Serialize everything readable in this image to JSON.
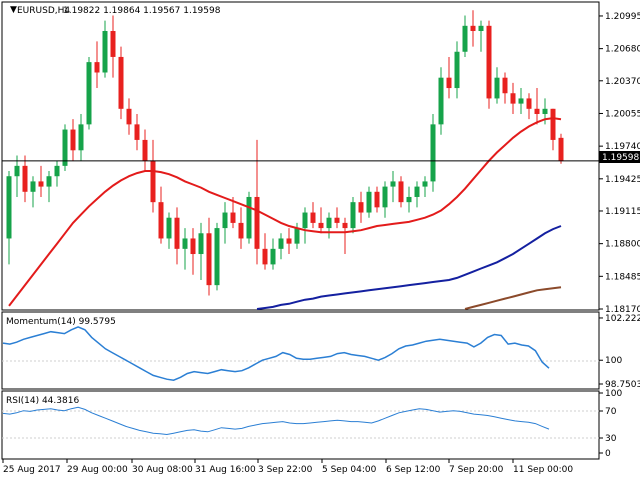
{
  "header": {
    "symbol": "EURUSD,H4",
    "ohlc": "1.19822 1.19864 1.19567 1.19598"
  },
  "colors": {
    "bull": "#16a34a",
    "bear": "#e8211f",
    "wick": "#000000",
    "ma_fast": "#e31b1b",
    "ma_mid": "#1420a0",
    "ma_slow": "#8b4a2b",
    "momentum": "#2b7fd4",
    "rsi": "#2b7fd4",
    "grid": "#d9d9d9",
    "axis": "#000000"
  },
  "main_chart": {
    "current_price_label": "1.19598",
    "y_ticks": [
      "1.20995",
      "1.20680",
      "1.20370",
      "1.20055",
      "1.19740",
      "1.19425",
      "1.19115",
      "1.18800",
      "1.18485",
      "1.18170"
    ]
  },
  "momentum_panel": {
    "title": "Momentum(14) 99.5795",
    "ticks": [
      "102.2221",
      "100",
      "98.7503"
    ]
  },
  "rsi_panel": {
    "title": "RSI(14) 44.3816",
    "ticks": [
      "70",
      "30"
    ],
    "axis_extremes": [
      "100",
      "0"
    ]
  },
  "x_ticks": [
    "25 Aug 2017",
    "29 Aug 00:00",
    "30 Aug 08:00",
    "31 Aug 16:00",
    "3 Sep 22:00",
    "5 Sep 04:00",
    "6 Sep 12:00",
    "7 Sep 20:00",
    "11 Sep 00:00"
  ],
  "chart_data": {
    "type": "candlestick",
    "ylim": [
      1.1817,
      1.2112
    ],
    "candles": [
      [
        1.1885,
        1.195,
        1.186,
        1.1945
      ],
      [
        1.1945,
        1.1965,
        1.1925,
        1.1955
      ],
      [
        1.1955,
        1.1965,
        1.192,
        1.193
      ],
      [
        1.193,
        1.1945,
        1.1915,
        1.194
      ],
      [
        1.194,
        1.1955,
        1.1925,
        1.1935
      ],
      [
        1.1935,
        1.195,
        1.192,
        1.1945
      ],
      [
        1.1945,
        1.196,
        1.1935,
        1.1955
      ],
      [
        1.1955,
        1.1995,
        1.195,
        1.199
      ],
      [
        1.199,
        1.2,
        1.196,
        1.197
      ],
      [
        1.197,
        1.2005,
        1.196,
        1.1995
      ],
      [
        1.1995,
        1.206,
        1.199,
        1.2055
      ],
      [
        1.2055,
        1.2075,
        1.203,
        1.2045
      ],
      [
        1.2045,
        1.2095,
        1.204,
        1.2085
      ],
      [
        1.2085,
        1.21,
        1.204,
        1.206
      ],
      [
        1.206,
        1.207,
        1.2,
        1.201
      ],
      [
        1.201,
        1.202,
        1.1985,
        1.1995
      ],
      [
        1.1995,
        1.2005,
        1.197,
        1.198
      ],
      [
        1.198,
        1.199,
        1.195,
        1.196
      ],
      [
        1.196,
        1.198,
        1.191,
        1.192
      ],
      [
        1.192,
        1.1935,
        1.188,
        1.1885
      ],
      [
        1.1885,
        1.191,
        1.1875,
        1.1905
      ],
      [
        1.1905,
        1.1915,
        1.186,
        1.1875
      ],
      [
        1.1875,
        1.1895,
        1.1855,
        1.1885
      ],
      [
        1.1885,
        1.1895,
        1.185,
        1.187
      ],
      [
        1.187,
        1.19,
        1.1845,
        1.189
      ],
      [
        1.189,
        1.1905,
        1.183,
        1.184
      ],
      [
        1.184,
        1.19,
        1.1835,
        1.1895
      ],
      [
        1.1895,
        1.192,
        1.188,
        1.191
      ],
      [
        1.191,
        1.1925,
        1.1895,
        1.19
      ],
      [
        1.19,
        1.1915,
        1.1875,
        1.1885
      ],
      [
        1.1885,
        1.193,
        1.188,
        1.1925
      ],
      [
        1.1925,
        1.198,
        1.186,
        1.1875
      ],
      [
        1.1875,
        1.189,
        1.1855,
        1.186
      ],
      [
        1.186,
        1.1885,
        1.1855,
        1.1875
      ],
      [
        1.1875,
        1.189,
        1.1865,
        1.1885
      ],
      [
        1.1885,
        1.1895,
        1.187,
        1.188
      ],
      [
        1.188,
        1.19,
        1.1875,
        1.1895
      ],
      [
        1.1895,
        1.1915,
        1.188,
        1.191
      ],
      [
        1.191,
        1.192,
        1.1895,
        1.19
      ],
      [
        1.19,
        1.1915,
        1.189,
        1.1895
      ],
      [
        1.1895,
        1.191,
        1.1885,
        1.1905
      ],
      [
        1.1905,
        1.1915,
        1.1895,
        1.19
      ],
      [
        1.19,
        1.1905,
        1.187,
        1.1895
      ],
      [
        1.1895,
        1.1925,
        1.189,
        1.192
      ],
      [
        1.192,
        1.193,
        1.19,
        1.191
      ],
      [
        1.191,
        1.1935,
        1.1905,
        1.193
      ],
      [
        1.193,
        1.1935,
        1.191,
        1.1915
      ],
      [
        1.1915,
        1.194,
        1.1905,
        1.1935
      ],
      [
        1.1935,
        1.195,
        1.192,
        1.194
      ],
      [
        1.194,
        1.1945,
        1.1915,
        1.192
      ],
      [
        1.192,
        1.1935,
        1.191,
        1.1925
      ],
      [
        1.1925,
        1.194,
        1.1915,
        1.1935
      ],
      [
        1.1935,
        1.1945,
        1.1925,
        1.194
      ],
      [
        1.194,
        1.2005,
        1.193,
        1.1995
      ],
      [
        1.1995,
        1.205,
        1.1985,
        1.204
      ],
      [
        1.204,
        1.206,
        1.202,
        1.203
      ],
      [
        1.203,
        1.2075,
        1.202,
        1.2065
      ],
      [
        1.2065,
        1.21,
        1.206,
        1.209
      ],
      [
        1.209,
        1.2105,
        1.207,
        1.2085
      ],
      [
        1.2085,
        1.2095,
        1.2065,
        1.209
      ],
      [
        1.209,
        1.2095,
        1.201,
        1.202
      ],
      [
        1.202,
        1.205,
        1.2015,
        1.204
      ],
      [
        1.204,
        1.2045,
        1.2015,
        1.2025
      ],
      [
        1.2025,
        1.2035,
        1.2005,
        1.2015
      ],
      [
        1.2015,
        1.203,
        1.2005,
        1.202
      ],
      [
        1.202,
        1.2025,
        1.2,
        1.201
      ],
      [
        1.201,
        1.203,
        1.1995,
        1.2005
      ],
      [
        1.2005,
        1.202,
        1.1995,
        1.201
      ],
      [
        1.201,
        1.201,
        1.197,
        1.198
      ],
      [
        1.1982,
        1.1986,
        1.1957,
        1.196
      ]
    ],
    "ma_fast": [
      1.182,
      1.183,
      1.184,
      1.185,
      1.186,
      1.187,
      1.188,
      1.189,
      1.19,
      1.1908,
      1.1916,
      1.1923,
      1.193,
      1.1936,
      1.1941,
      1.1945,
      1.1948,
      1.195,
      1.195,
      1.1949,
      1.1947,
      1.1944,
      1.194,
      1.1937,
      1.1934,
      1.193,
      1.1927,
      1.1924,
      1.1921,
      1.1918,
      1.1915,
      1.1912,
      1.1908,
      1.1904,
      1.19,
      1.1897,
      1.1895,
      1.1893,
      1.1892,
      1.1891,
      1.1891,
      1.1891,
      1.1891,
      1.1892,
      1.1893,
      1.1895,
      1.1897,
      1.1898,
      1.1899,
      1.19,
      1.1901,
      1.1903,
      1.1905,
      1.1908,
      1.1912,
      1.1918,
      1.1925,
      1.1933,
      1.1942,
      1.1951,
      1.196,
      1.1968,
      1.1975,
      1.1982,
      1.1988,
      1.1993,
      1.1997,
      1.2,
      1.2001,
      1.2
    ],
    "ma_mid": [
      1.1817,
      1.1818,
      1.1819,
      1.1821,
      1.1822,
      1.1824,
      1.1826,
      1.1827,
      1.1829,
      1.183,
      1.1831,
      1.1832,
      1.1833,
      1.1834,
      1.1835,
      1.1836,
      1.1837,
      1.1838,
      1.1839,
      1.184,
      1.1841,
      1.1842,
      1.1843,
      1.1844,
      1.1845,
      1.1847,
      1.185,
      1.1853,
      1.1856,
      1.1859,
      1.1862,
      1.1866,
      1.187,
      1.1875,
      1.188,
      1.1885,
      1.189,
      1.1894,
      1.1897
    ],
    "ma_slow": [
      1.1817,
      1.1819,
      1.1821,
      1.1823,
      1.1825,
      1.1827,
      1.1829,
      1.1831,
      1.1833,
      1.1835,
      1.1836,
      1.1837,
      1.1838
    ],
    "momentum": [
      100.9,
      100.85,
      100.95,
      101.1,
      101.2,
      101.3,
      101.4,
      101.5,
      101.45,
      101.4,
      101.6,
      101.75,
      101.6,
      101.2,
      100.9,
      100.6,
      100.4,
      100.2,
      100.0,
      99.8,
      99.6,
      99.4,
      99.2,
      99.1,
      99.0,
      98.95,
      99.1,
      99.3,
      99.4,
      99.35,
      99.3,
      99.4,
      99.5,
      99.45,
      99.4,
      99.45,
      99.6,
      99.8,
      100.0,
      100.1,
      100.2,
      100.4,
      100.3,
      100.1,
      100.05,
      100.05,
      100.1,
      100.15,
      100.2,
      100.35,
      100.4,
      100.3,
      100.25,
      100.2,
      100.1,
      100.0,
      100.15,
      100.35,
      100.6,
      100.75,
      100.8,
      100.9,
      101.0,
      101.05,
      101.1,
      101.05,
      101.0,
      100.95,
      100.9,
      100.7,
      100.9,
      101.2,
      101.35,
      101.3,
      100.85,
      100.9,
      100.8,
      100.75,
      100.5,
      99.9,
      99.58
    ],
    "rsi": [
      67,
      66,
      68,
      71,
      70,
      72,
      73,
      74,
      72,
      71,
      74,
      76,
      73,
      68,
      64,
      60,
      56,
      52,
      48,
      45,
      42,
      40,
      38,
      37,
      36,
      38,
      40,
      42,
      43,
      41,
      40,
      43,
      46,
      45,
      44,
      45,
      48,
      50,
      52,
      53,
      54,
      55,
      53,
      52,
      52,
      53,
      54,
      55,
      56,
      57,
      56,
      55,
      55,
      54,
      53,
      56,
      60,
      64,
      68,
      70,
      72,
      74,
      73,
      71,
      69,
      70,
      71,
      70,
      68,
      66,
      65,
      64,
      62,
      60,
      58,
      56,
      55,
      54,
      52,
      48,
      44
    ]
  }
}
